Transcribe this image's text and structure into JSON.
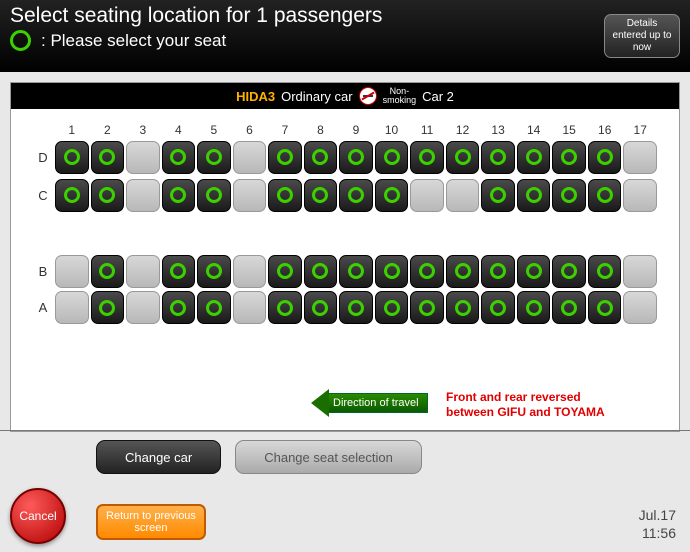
{
  "header": {
    "title": "Select seating location for 1 passengers",
    "legend": ": Please select your seat",
    "details_btn": "Details entered up to now"
  },
  "train": {
    "name": "HIDA3",
    "class": "Ordinary car",
    "smoking_top": "Non-",
    "smoking_bot": "smoking",
    "car": "Car 2"
  },
  "columns": [
    "1",
    "2",
    "3",
    "4",
    "5",
    "6",
    "7",
    "8",
    "9",
    "10",
    "11",
    "12",
    "13",
    "14",
    "15",
    "16",
    "17"
  ],
  "rows": [
    {
      "label": "D",
      "seats": [
        1,
        1,
        0,
        1,
        1,
        0,
        1,
        1,
        1,
        1,
        1,
        1,
        1,
        1,
        1,
        1,
        0
      ]
    },
    {
      "label": "C",
      "seats": [
        1,
        1,
        0,
        1,
        1,
        0,
        1,
        1,
        1,
        1,
        0,
        0,
        1,
        1,
        1,
        1,
        0
      ]
    },
    {
      "label": "B",
      "seats": [
        0,
        1,
        0,
        1,
        1,
        0,
        1,
        1,
        1,
        1,
        1,
        1,
        1,
        1,
        1,
        1,
        0
      ]
    },
    {
      "label": "A",
      "seats": [
        0,
        1,
        0,
        1,
        1,
        0,
        1,
        1,
        1,
        1,
        1,
        1,
        1,
        1,
        1,
        1,
        0
      ]
    }
  ],
  "direction": "Direction of travel",
  "reverse_note_l1": "Front and rear reversed",
  "reverse_note_l2": "between GIFU and TOYAMA",
  "buttons": {
    "change_car": "Change car",
    "change_selection": "Change seat selection",
    "cancel": "Cancel",
    "return": "Return to previous screen"
  },
  "clock": {
    "date": "Jul.17",
    "time": "11:56"
  },
  "colors": {
    "accent_green": "#3cd000",
    "train_name": "#ffb000",
    "warning_red": "#e00000"
  }
}
